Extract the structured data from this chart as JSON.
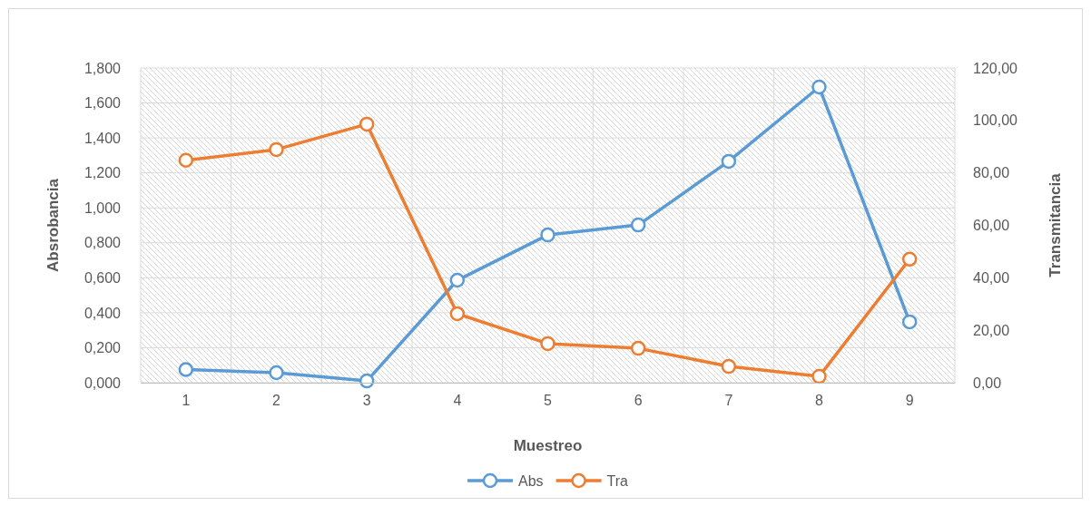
{
  "chart_data": {
    "type": "line",
    "categories": [
      "1",
      "2",
      "3",
      "4",
      "5",
      "6",
      "7",
      "8",
      "9"
    ],
    "xlabel": "Muestreo",
    "ylabel": "Absrobancia",
    "y2label": "Transmitancia",
    "series": [
      {
        "name": "Abs",
        "color": "#5b9bd5",
        "values": [
          0.075,
          0.057,
          0.01,
          0.586,
          0.845,
          0.902,
          1.266,
          1.691,
          0.348
        ]
      },
      {
        "name": "Tra",
        "color": "#ed7d31",
        "axis": "y2",
        "values": [
          84.8,
          88.9,
          98.6,
          26.3,
          14.9,
          13.1,
          6.2,
          2.4,
          47.1
        ]
      }
    ],
    "ylim": [
      0,
      1.8
    ],
    "yticks": [
      {
        "value": 0,
        "label": "0,000"
      },
      {
        "value": 0.2,
        "label": "0,200"
      },
      {
        "value": 0.4,
        "label": "0,400"
      },
      {
        "value": 0.6,
        "label": "0,600"
      },
      {
        "value": 0.8,
        "label": "0,800"
      },
      {
        "value": 1,
        "label": "1,000"
      },
      {
        "value": 1.2,
        "label": "1,200"
      },
      {
        "value": 1.4,
        "label": "1,400"
      },
      {
        "value": 1.6,
        "label": "1,600"
      },
      {
        "value": 1.8,
        "label": "1,800"
      }
    ],
    "y2lim": [
      0,
      120
    ],
    "y2ticks": [
      {
        "value": 0,
        "label": "0,00"
      },
      {
        "value": 20,
        "label": "20,00"
      },
      {
        "value": 40,
        "label": "40,00"
      },
      {
        "value": 60,
        "label": "60,00"
      },
      {
        "value": 80,
        "label": "80,00"
      },
      {
        "value": 100,
        "label": "100,00"
      },
      {
        "value": 120,
        "label": "120,00"
      }
    ],
    "grid": true,
    "legend": "bottom",
    "marker": "circle",
    "line_style": "solid"
  }
}
